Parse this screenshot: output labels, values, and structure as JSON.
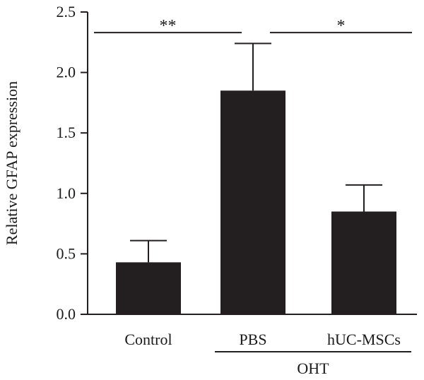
{
  "chart_data": {
    "type": "bar",
    "title": "",
    "xlabel": "",
    "ylabel": "Relative GFAP expression",
    "ylim": [
      0,
      2.5
    ],
    "yticks": [
      "0.0",
      "0.5",
      "1.0",
      "1.5",
      "2.0",
      "2.5"
    ],
    "grid": false,
    "legend": "none",
    "categories": [
      "Control",
      "PBS",
      "hUC-MSCs"
    ],
    "values": [
      0.43,
      1.85,
      0.85
    ],
    "errors": [
      0.18,
      0.39,
      0.22
    ],
    "bar_color": "#231f20",
    "group": {
      "label": "OHT",
      "members": [
        "PBS",
        "hUC-MSCs"
      ]
    },
    "significance": [
      {
        "from": "Control",
        "to": "PBS",
        "label": "**",
        "y": 2.33
      },
      {
        "from": "PBS",
        "to": "hUC-MSCs",
        "label": "*",
        "y": 2.33
      }
    ]
  }
}
